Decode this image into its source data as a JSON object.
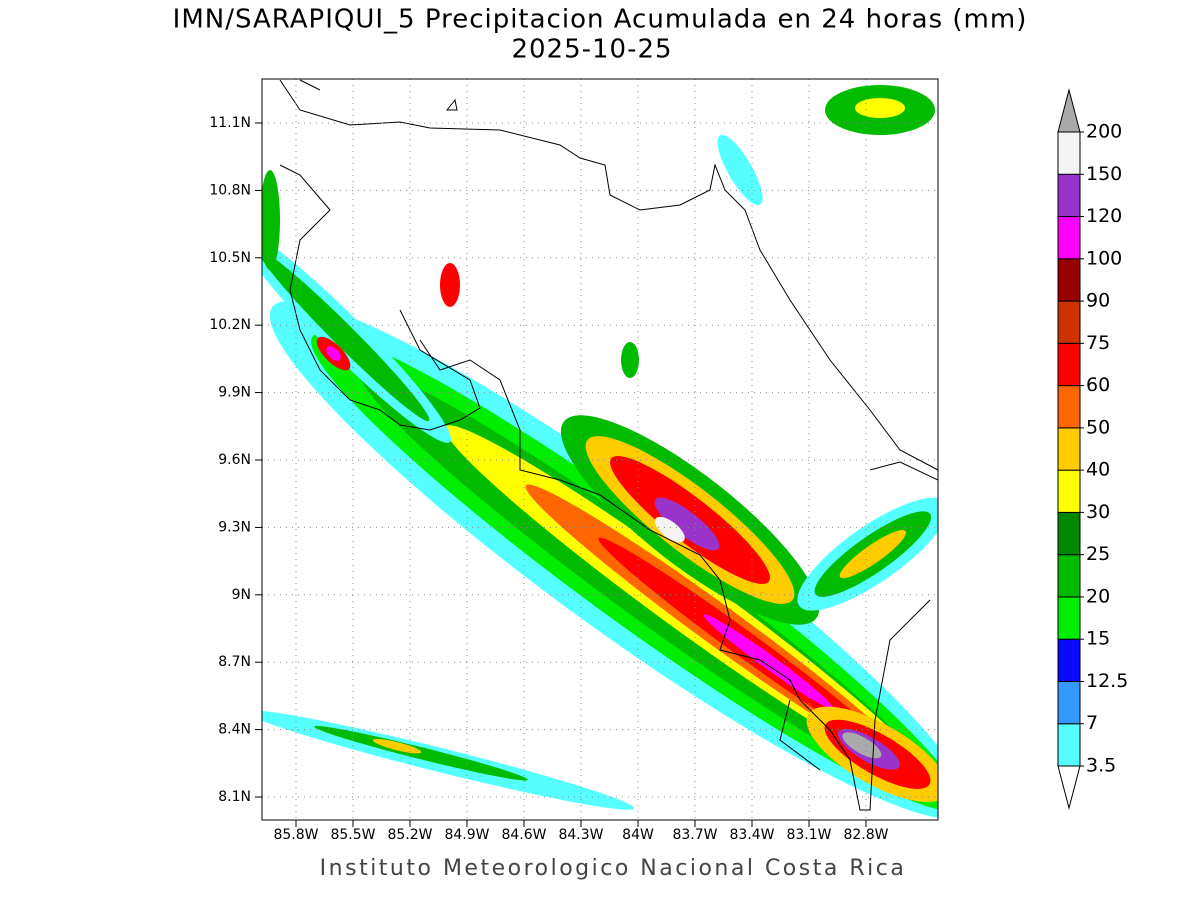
{
  "title": "IMN/SARAPIQUI_5 Precipitacion Acumulada en 24 horas (mm)",
  "subtitle": "2025-10-25",
  "map": {
    "lat_ticks": [
      "11.1N",
      "10.8N",
      "10.5N",
      "10.2N",
      "9.9N",
      "9.6N",
      "9.3N",
      "9N",
      "8.7N",
      "8.4N",
      "8.1N"
    ],
    "lon_ticks": [
      "85.8W",
      "85.5W",
      "85.2W",
      "84.9W",
      "84.6W",
      "84.3W",
      "84W",
      "83.7W",
      "83.4W",
      "83.1W",
      "82.8W"
    ]
  },
  "colorbar": {
    "levels": [
      3.5,
      7,
      {
        "value": 12.5,
        "label": "12.5"
      },
      15,
      20,
      25,
      30,
      40,
      50,
      60,
      75,
      90,
      100,
      120,
      150,
      200
    ],
    "colors": [
      "#ffffff",
      "#55ffff",
      "#3399ff",
      "#0a0aff",
      "#00ee00",
      "#00bb00",
      "#008800",
      "#ffff00",
      "#ffcc00",
      "#ff6600",
      "#ff0000",
      "#cc3300",
      "#990000",
      "#ff00ff",
      "#9933cc",
      "#f4f4f4",
      "#aaaaaa"
    ]
  },
  "footer": "Instituto Meteorologico Nacional Costa Rica"
}
